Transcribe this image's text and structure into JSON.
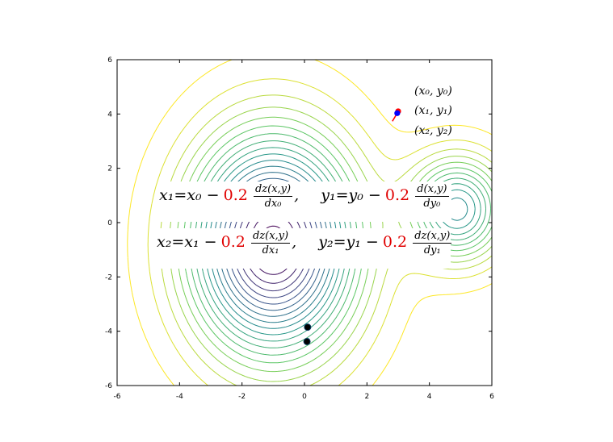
{
  "chart_data": {
    "type": "contour",
    "title": "",
    "xlabel": "",
    "ylabel": "",
    "xlim": [
      -6,
      6
    ],
    "ylim": [
      -6,
      6
    ],
    "x_ticks": [
      "-6",
      "-4",
      "-2",
      "0",
      "2",
      "4",
      "6"
    ],
    "y_ticks": [
      "6",
      "4",
      "2",
      "0",
      "-2",
      "-4",
      "-6"
    ],
    "grid": false,
    "contour_field": {
      "minima": [
        {
          "x": -1.0,
          "y": -0.8,
          "depth": 1.0
        },
        {
          "x": 4.9,
          "y": 0.5,
          "depth": 0.55
        }
      ],
      "colormap": [
        "#440154",
        "#3b528b",
        "#21918c",
        "#5ec962",
        "#fde725"
      ]
    },
    "points_top": [
      {
        "x": 3.0,
        "y": 4.1,
        "color": "#ff0000"
      },
      {
        "x": 2.97,
        "y": 4.03,
        "color": "#0000ff"
      }
    ],
    "points_bottom": [
      {
        "x": 0.1,
        "y": -3.85,
        "color": "#000000"
      },
      {
        "x": 0.08,
        "y": -4.38,
        "color": "#000000"
      }
    ],
    "step_marker_color": "#ff0000",
    "annotations": {
      "p0": "(x₀, y₀)",
      "p1": "(x₁, y₁)",
      "p2": "(x₂, y₂)"
    },
    "equations": {
      "row1": {
        "x_lhs": "x₁=x₀ −",
        "rate": "0.2",
        "x_num": "dz(x,y)",
        "x_den": "dx₀",
        "y_lhs": "y₁=y₀ −",
        "y_num": "d(x,y)",
        "y_den": "dy₀"
      },
      "row2": {
        "x_lhs": "x₂=x₁ −",
        "rate": "0.2",
        "x_num": "dz(x,y)",
        "x_den": "dx₁",
        "y_lhs": "y₂=y₁ −",
        "y_num": "dz(x,y)",
        "y_den": "dy₁"
      },
      "comma": ","
    }
  }
}
